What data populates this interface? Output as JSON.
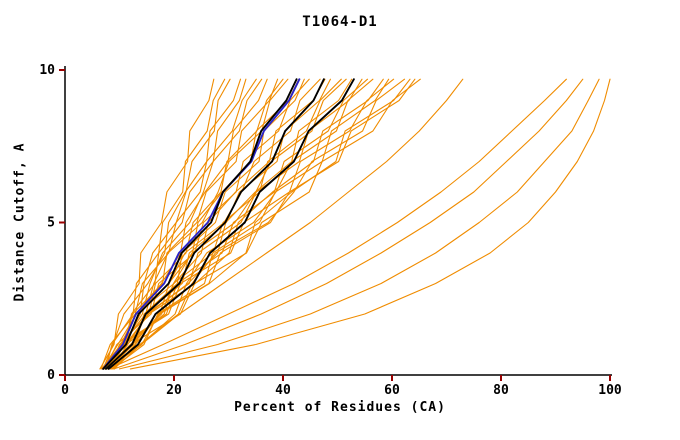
{
  "chart_data": {
    "type": "line",
    "title": "T1064-D1",
    "xlabel": "Percent of Residues (CA)",
    "ylabel": "Distance Cutoff, A",
    "xlim": [
      0,
      100
    ],
    "ylim": [
      0,
      10
    ],
    "x_ticks": [
      0,
      20,
      40,
      60,
      80,
      100
    ],
    "y_ticks": [
      0,
      5,
      10
    ],
    "grid": false,
    "legend": "none",
    "colors": {
      "model": "#f08c00",
      "reference": "#000000",
      "highlight": "#2a24c8",
      "axis": "#000000",
      "tick": "#990000"
    },
    "y_levels": [
      0.2,
      1,
      2,
      3,
      4,
      5,
      6,
      7,
      8,
      9,
      9.7
    ],
    "series_groups": {
      "orange": [
        [
          6.4,
          9.0,
          9.8,
          13.6,
          13.9,
          17.7,
          18.7,
          22.5,
          22.9,
          26.4,
          27.3
        ],
        [
          7.5,
          8.6,
          12.5,
          13.1,
          17.2,
          17.9,
          21.6,
          22.1,
          26.1,
          27.2,
          29.3
        ],
        [
          8.5,
          10.8,
          13.8,
          14.5,
          16.1,
          20.4,
          22.2,
          23.3,
          27.4,
          28.1,
          30.3
        ],
        [
          7.0,
          8.8,
          10.8,
          15.2,
          18.3,
          19.0,
          22.1,
          26.0,
          26.6,
          30.9,
          32.2
        ],
        [
          8.0,
          11.0,
          12.2,
          16.5,
          17.2,
          21.5,
          22.9,
          27.2,
          28.0,
          32.0,
          33.2
        ],
        [
          6.6,
          8.3,
          12.9,
          14.2,
          19.0,
          20.4,
          24.8,
          26.0,
          30.7,
          32.5,
          35.1
        ],
        [
          7.6,
          10.5,
          14.2,
          15.6,
          17.9,
          22.9,
          25.4,
          27.2,
          32.0,
          33.4,
          36.1
        ],
        [
          8.6,
          10.6,
          13.0,
          17.7,
          21.2,
          22.2,
          25.7,
          29.9,
          30.9,
          35.5,
          37.1
        ],
        [
          7.2,
          10.9,
          12.4,
          17.9,
          18.7,
          24.2,
          25.9,
          31.4,
          32.4,
          37.5,
          39.0
        ],
        [
          8.2,
          10.0,
          15.4,
          16.6,
          22.2,
          23.5,
          28.6,
          29.7,
          35.2,
          37.0,
          40.0
        ],
        [
          6.7,
          10.3,
          14.8,
          16.3,
          18.9,
          25.2,
          28.1,
          30.1,
          36.1,
          37.6,
          40.9
        ],
        [
          7.7,
          10.2,
          13.1,
          19.0,
          23.4,
          24.4,
          28.8,
          34.1,
          35.1,
          41.0,
          42.9
        ],
        [
          8.7,
          12.9,
          14.5,
          20.6,
          21.5,
          27.6,
          29.4,
          35.6,
          36.5,
          42.2,
          43.9
        ],
        [
          7.3,
          9.5,
          15.8,
          17.2,
          23.8,
          25.4,
          31.4,
          32.7,
          39.2,
          41.3,
          44.8
        ],
        [
          8.3,
          12.4,
          17.4,
          19.1,
          22.0,
          29.2,
          32.4,
          34.7,
          41.4,
          43.1,
          46.8
        ],
        [
          6.9,
          9.7,
          13.1,
          20.0,
          25.0,
          26.3,
          31.3,
          37.5,
          38.7,
          45.5,
          47.7
        ],
        [
          7.9,
          12.6,
          14.6,
          21.5,
          22.8,
          29.6,
          32.0,
          38.9,
          40.3,
          46.7,
          48.7
        ],
        [
          8.9,
          11.3,
          18.2,
          19.9,
          27.2,
          29.0,
          35.7,
          37.2,
          44.3,
          46.8,
          50.7
        ],
        [
          7.4,
          12.0,
          17.7,
          19.9,
          23.3,
          31.2,
          35.0,
          37.8,
          45.3,
          47.4,
          51.6
        ],
        [
          8.4,
          11.5,
          15.2,
          22.6,
          28.0,
          29.5,
          34.9,
          41.6,
          42.9,
          50.2,
          52.6
        ],
        [
          7.0,
          12.4,
          14.9,
          22.8,
          24.4,
          32.3,
          35.1,
          43.0,
          44.7,
          52.1,
          54.5
        ],
        [
          8.0,
          10.7,
          18.6,
          20.6,
          28.8,
          30.9,
          38.4,
          40.2,
          48.3,
          51.1,
          55.5
        ],
        [
          9.0,
          13.9,
          20.2,
          22.3,
          26.0,
          34.6,
          38.7,
          41.6,
          49.8,
          51.9,
          56.5
        ],
        [
          7.6,
          11.1,
          15.4,
          23.9,
          30.1,
          31.8,
          38.1,
          45.6,
          47.3,
          55.6,
          58.4
        ],
        [
          8.6,
          14.5,
          17.0,
          25.6,
          27.1,
          35.7,
          38.6,
          47.2,
          48.9,
          56.9,
          59.4
        ],
        [
          7.1,
          10.2,
          19.0,
          21.2,
          30.4,
          32.8,
          41.2,
          43.2,
          52.2,
          55.4,
          60.3
        ],
        [
          8.1,
          13.7,
          20.8,
          23.3,
          27.6,
          37.3,
          42.0,
          45.3,
          54.6,
          57.1,
          62.3
        ],
        [
          9.1,
          12.9,
          17.4,
          26.5,
          33.2,
          34.9,
          41.6,
          49.7,
          51.4,
          60.3,
          63.3
        ],
        [
          7.7,
          14.1,
          17.2,
          26.4,
          28.5,
          37.7,
          41.2,
          50.2,
          52.5,
          61.3,
          64.2
        ],
        [
          8.7,
          12.1,
          21.2,
          23.8,
          33.3,
          36.1,
          44.8,
          47.2,
          56.5,
          60.1,
          65.2
        ],
        [
          8.0,
          14.0,
          21.0,
          29.0,
          37.0,
          45.0,
          52.0,
          59.0,
          65.0,
          70.0,
          73.0
        ],
        [
          8.0,
          18.0,
          30.0,
          42.0,
          52.0,
          61.0,
          69.0,
          76.0,
          82.0,
          88.0,
          92.0
        ],
        [
          9.0,
          22.0,
          36.0,
          48.0,
          58.0,
          67.0,
          75.0,
          81.0,
          87.0,
          92.0,
          95.0
        ],
        [
          10.0,
          28.0,
          45.0,
          58.0,
          68.0,
          76.0,
          83.0,
          88.0,
          93.0,
          96.0,
          98.0
        ],
        [
          12.0,
          35.0,
          55.0,
          68.0,
          78.0,
          85.0,
          90.0,
          94.0,
          97.0,
          99.0,
          100.0
        ]
      ],
      "blue": [
        [
          7.0,
          10.6,
          13.0,
          18.2,
          20.9,
          26.2,
          29.0,
          34.2,
          36.5,
          41.1,
          43.0
        ]
      ],
      "black": [
        [
          7.0,
          11.2,
          13.5,
          19.0,
          21.4,
          26.8,
          29.0,
          34.0,
          36.0,
          40.6,
          42.5
        ],
        [
          7.5,
          12.3,
          14.8,
          21.0,
          23.7,
          29.4,
          32.3,
          38.0,
          40.4,
          45.6,
          47.5
        ],
        [
          8.0,
          13.4,
          16.6,
          23.6,
          26.6,
          33.0,
          35.7,
          42.0,
          44.7,
          50.8,
          53.0
        ]
      ]
    }
  }
}
